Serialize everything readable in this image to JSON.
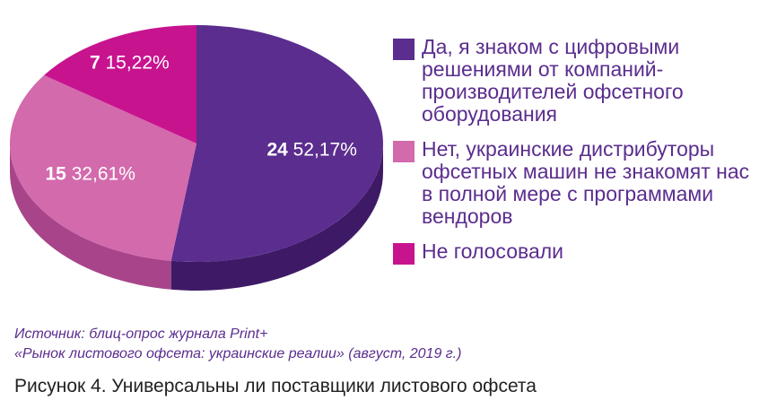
{
  "chart_data": {
    "type": "pie",
    "categories": [
      "Да, я знаком с цифровыми решениями от компаний-производителей офсетного оборудования",
      "Нет, украинские дистрибуторы офсетных машин не знакомят нас в полной мере с программами вендоров",
      "Не голосовали"
    ],
    "values": [
      24,
      15,
      7
    ],
    "percent_labels": [
      "52,17%",
      "32,61%",
      "15,22%"
    ],
    "colors": [
      "#5b2d8e",
      "#d36aac",
      "#c8138f"
    ],
    "side_colors": [
      "#3e1a66",
      "#a8458a",
      "#8e0f67"
    ],
    "style": "3d",
    "legend_position": "right"
  },
  "legend": [
    {
      "label": "Да, я знаком с цифровыми решениями от компаний-производителей офсетного оборудования",
      "color": "#5b2d8e"
    },
    {
      "label": "Нет, украинские дистрибуторы офсетных машин не знакомят нас в полной мере с программами вендоров",
      "color": "#d36aac"
    },
    {
      "label": "Не голосовали",
      "color": "#c8138f"
    }
  ],
  "source": {
    "line1": "Источник: блиц-опрос журнала Print+",
    "line2": "«Рынок листового офсета: украинские реалии» (август, 2019 г.)"
  },
  "caption": "Рисунок 4. Универсальны ли поставщики листового офсета"
}
